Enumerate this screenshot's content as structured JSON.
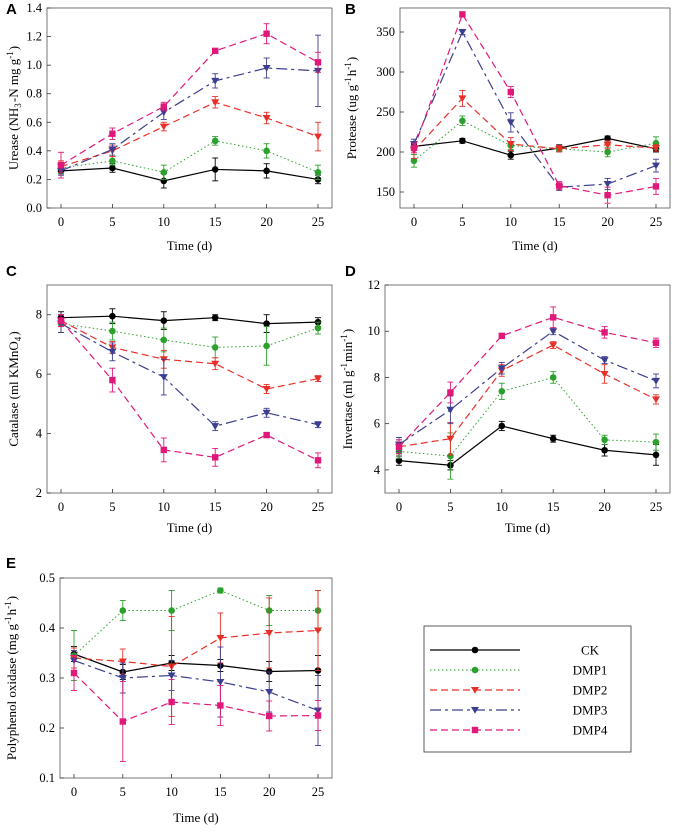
{
  "colors": {
    "CK": "#000000",
    "DMP1": "#2ca02c",
    "DMP2": "#e8302a",
    "DMP3": "#3c3f8f",
    "DMP4": "#e0187a"
  },
  "legend": [
    "CK",
    "DMP1",
    "DMP2",
    "DMP3",
    "DMP4"
  ],
  "chart_data": [
    {
      "panel": "A",
      "type": "line",
      "title": "",
      "xlabel": "Time (d)",
      "ylabel": "Urease (NH3-N mg g-1)",
      "x": [
        0,
        5,
        10,
        15,
        20,
        25
      ],
      "xticks": [
        "0",
        "5",
        "10",
        "15",
        "20",
        "25"
      ],
      "yticks": [
        "0.0",
        "0.2",
        "0.4",
        "0.6",
        "0.8",
        "1.0",
        "1.2",
        "1.4"
      ],
      "ylim": [
        0,
        1.4
      ],
      "series": [
        {
          "name": "CK",
          "values": [
            0.26,
            0.28,
            0.19,
            0.27,
            0.26,
            0.2
          ],
          "errors": [
            0.03,
            0.03,
            0.05,
            0.08,
            0.05,
            0.03
          ]
        },
        {
          "name": "DMP1",
          "values": [
            0.28,
            0.33,
            0.25,
            0.47,
            0.4,
            0.25
          ],
          "errors": [
            0.04,
            0.03,
            0.05,
            0.03,
            0.05,
            0.05
          ]
        },
        {
          "name": "DMP2",
          "values": [
            0.29,
            0.4,
            0.57,
            0.74,
            0.63,
            0.5
          ],
          "errors": [
            0.04,
            0.04,
            0.03,
            0.04,
            0.04,
            0.1
          ]
        },
        {
          "name": "DMP3",
          "values": [
            0.26,
            0.41,
            0.67,
            0.89,
            0.98,
            0.96
          ],
          "errors": [
            0.03,
            0.04,
            0.05,
            0.05,
            0.07,
            0.25
          ]
        },
        {
          "name": "DMP4",
          "values": [
            0.3,
            0.52,
            0.71,
            1.1,
            1.22,
            1.02
          ],
          "errors": [
            0.09,
            0.04,
            0.03,
            0.01,
            0.07,
            0.07
          ]
        }
      ]
    },
    {
      "panel": "B",
      "type": "line",
      "title": "",
      "xlabel": "Time (d)",
      "ylabel": "Protease (ug g-1 h-1)",
      "x": [
        0,
        5,
        10,
        15,
        20,
        25
      ],
      "xticks": [
        "0",
        "5",
        "10",
        "15",
        "20",
        "25"
      ],
      "yticks": [
        "150",
        "200",
        "250",
        "300",
        "350"
      ],
      "ylim": [
        130,
        380
      ],
      "series": [
        {
          "name": "CK",
          "values": [
            207,
            214,
            196,
            205,
            217,
            204
          ],
          "errors": [
            3,
            3,
            5,
            4,
            3,
            4
          ]
        },
        {
          "name": "DMP1",
          "values": [
            189,
            239,
            208,
            204,
            200,
            211
          ],
          "errors": [
            8,
            6,
            5,
            3,
            6,
            8
          ]
        },
        {
          "name": "DMP2",
          "values": [
            202,
            267,
            210,
            204,
            209,
            205
          ],
          "errors": [
            10,
            10,
            8,
            4,
            5,
            4
          ]
        },
        {
          "name": "DMP3",
          "values": [
            210,
            350,
            237,
            156,
            160,
            183
          ],
          "errors": [
            6,
            3,
            12,
            4,
            7,
            8
          ]
        },
        {
          "name": "DMP4",
          "values": [
            205,
            372,
            275,
            158,
            146,
            157
          ],
          "errors": [
            6,
            3,
            7,
            5,
            10,
            10
          ]
        }
      ]
    },
    {
      "panel": "C",
      "type": "line",
      "title": "",
      "xlabel": "Time (d)",
      "ylabel": "Catalase (ml KMnO4)",
      "x": [
        0,
        5,
        10,
        15,
        20,
        25
      ],
      "xticks": [
        "0",
        "5",
        "10",
        "15",
        "20",
        "25"
      ],
      "yticks": [
        "2",
        "4",
        "6",
        "8"
      ],
      "ylim": [
        2,
        9
      ],
      "series": [
        {
          "name": "CK",
          "values": [
            7.9,
            7.95,
            7.8,
            7.9,
            7.7,
            7.75
          ],
          "errors": [
            0.2,
            0.25,
            0.3,
            0.1,
            0.3,
            0.15
          ]
        },
        {
          "name": "DMP1",
          "values": [
            7.7,
            7.45,
            7.15,
            6.9,
            6.95,
            7.55
          ],
          "errors": [
            0.3,
            0.3,
            0.4,
            0.35,
            0.65,
            0.2
          ]
        },
        {
          "name": "DMP2",
          "values": [
            7.8,
            6.9,
            6.5,
            6.35,
            5.5,
            5.85
          ],
          "errors": [
            0.2,
            0.2,
            0.3,
            0.2,
            0.15,
            0.1
          ]
        },
        {
          "name": "DMP3",
          "values": [
            7.7,
            6.75,
            5.9,
            4.25,
            4.7,
            4.3
          ],
          "errors": [
            0.3,
            0.3,
            0.6,
            0.15,
            0.15,
            0.1
          ]
        },
        {
          "name": "DMP4",
          "values": [
            7.8,
            5.8,
            3.45,
            3.2,
            3.95,
            3.1
          ],
          "errors": [
            0.2,
            0.4,
            0.4,
            0.3,
            0.05,
            0.25
          ]
        }
      ]
    },
    {
      "panel": "D",
      "type": "line",
      "title": "",
      "xlabel": "Time (d)",
      "ylabel": "Invertase (ml g-1 min-1)",
      "x": [
        0,
        5,
        10,
        15,
        20,
        25
      ],
      "xticks": [
        "0",
        "5",
        "10",
        "15",
        "20",
        "25"
      ],
      "yticks": [
        "4",
        "6",
        "8",
        "10",
        "12"
      ],
      "ylim": [
        3,
        12
      ],
      "series": [
        {
          "name": "CK",
          "values": [
            4.4,
            4.2,
            5.9,
            5.35,
            4.85,
            4.65
          ],
          "errors": [
            0.2,
            0.2,
            0.2,
            0.15,
            0.25,
            0.45
          ]
        },
        {
          "name": "DMP1",
          "values": [
            4.8,
            4.6,
            7.4,
            8.0,
            5.3,
            5.2
          ],
          "errors": [
            0.3,
            1.0,
            0.35,
            0.25,
            0.2,
            0.35
          ]
        },
        {
          "name": "DMP2",
          "values": [
            5.0,
            5.35,
            8.3,
            9.4,
            8.15,
            7.05
          ],
          "errors": [
            0.3,
            0.7,
            0.25,
            0.15,
            0.4,
            0.2
          ]
        },
        {
          "name": "DMP3",
          "values": [
            5.1,
            6.6,
            8.4,
            10.0,
            8.75,
            7.85
          ],
          "errors": [
            0.3,
            0.6,
            0.25,
            0.15,
            0.15,
            0.3
          ]
        },
        {
          "name": "DMP4",
          "values": [
            5.0,
            7.35,
            9.8,
            10.6,
            9.95,
            9.5
          ],
          "errors": [
            0.3,
            0.45,
            0.1,
            0.45,
            0.25,
            0.2
          ]
        }
      ]
    },
    {
      "panel": "E",
      "type": "line",
      "title": "",
      "xlabel": "Time (d)",
      "ylabel": "Polyphenol oxidase (mg g-1 h-1)",
      "x": [
        0,
        5,
        10,
        15,
        20,
        25
      ],
      "xticks": [
        "0",
        "5",
        "10",
        "15",
        "20",
        "25"
      ],
      "yticks": [
        "0.1",
        "0.2",
        "0.3",
        "0.4",
        "0.5"
      ],
      "ylim": [
        0.1,
        0.5
      ],
      "series": [
        {
          "name": "CK",
          "values": [
            0.348,
            0.312,
            0.33,
            0.325,
            0.313,
            0.315
          ],
          "errors": [
            0.015,
            0.015,
            0.015,
            0.012,
            0.02,
            0.03
          ]
        },
        {
          "name": "DMP1",
          "values": [
            0.345,
            0.435,
            0.435,
            0.475,
            0.435,
            0.435
          ],
          "errors": [
            0.05,
            0.02,
            0.04,
            0.005,
            0.03,
            0.04
          ]
        },
        {
          "name": "DMP2",
          "values": [
            0.34,
            0.333,
            0.323,
            0.38,
            0.39,
            0.395
          ],
          "errors": [
            0.02,
            0.025,
            0.1,
            0.05,
            0.07,
            0.08
          ]
        },
        {
          "name": "DMP3",
          "values": [
            0.335,
            0.3,
            0.305,
            0.292,
            0.272,
            0.235
          ],
          "errors": [
            0.02,
            0.03,
            0.03,
            0.07,
            0.04,
            0.07
          ]
        },
        {
          "name": "DMP4",
          "values": [
            0.31,
            0.213,
            0.252,
            0.245,
            0.224,
            0.225
          ],
          "errors": [
            0.035,
            0.08,
            0.045,
            0.04,
            0.03,
            0.03
          ]
        }
      ]
    }
  ]
}
